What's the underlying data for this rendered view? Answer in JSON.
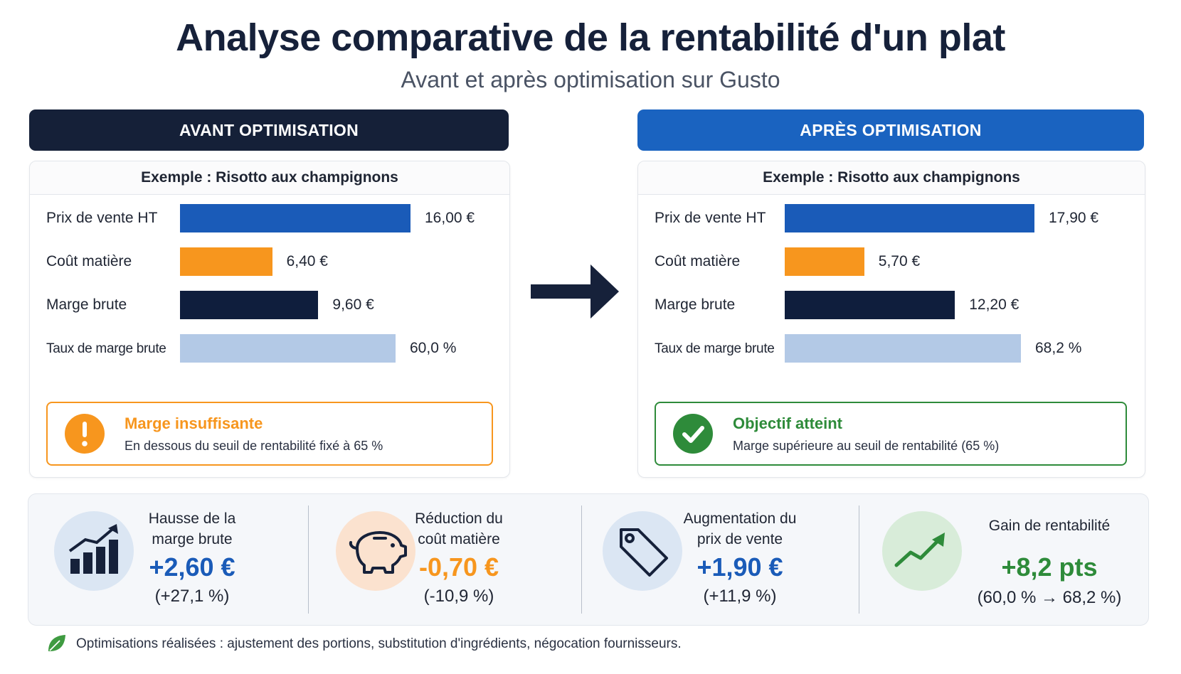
{
  "header": {
    "title": "Analyse comparative de la rentabilité d'un plat",
    "subtitle": "Avant et après optimisation sur Gusto"
  },
  "panels": {
    "before": {
      "heading": "AVANT OPTIMISATION",
      "example": "Exemple : Risotto aux champignons",
      "status": {
        "title": "Marge insuffisante",
        "text": "En dessous du seuil de rentabilité fixé à 65 %",
        "icon": "exclamation-icon"
      }
    },
    "after": {
      "heading": "APRÈS OPTIMISATION",
      "example": "Exemple : Risotto aux champignons",
      "status": {
        "title": "Objectif atteint",
        "text": "Marge supérieure au seuil de rentabilité (65 %)",
        "icon": "check-icon"
      }
    }
  },
  "chart_data": [
    {
      "type": "bar",
      "orientation": "horizontal",
      "categories": [
        "Prix de vente HT",
        "Coût matière",
        "Marge brute",
        "Taux de marge brute"
      ],
      "values": [
        16.0,
        6.4,
        9.6,
        60.0
      ],
      "value_labels": [
        "16,00 €",
        "6,40 €",
        "9,60 €",
        "60,0 %"
      ],
      "units": [
        "€",
        "€",
        "€",
        "%"
      ],
      "colors": [
        "#1a5bb8",
        "#f7961e",
        "#0f1e3d",
        "#b3c9e6"
      ]
    },
    {
      "type": "bar",
      "orientation": "horizontal",
      "categories": [
        "Prix de vente HT",
        "Coût matière",
        "Marge brute",
        "Taux de marge brute"
      ],
      "values": [
        17.9,
        5.7,
        12.2,
        68.2
      ],
      "value_labels": [
        "17,90 €",
        "5,70 €",
        "12,20 €",
        "68,2 %"
      ],
      "units": [
        "€",
        "€",
        "€",
        "%"
      ],
      "colors": [
        "#1a5bb8",
        "#f7961e",
        "#0f1e3d",
        "#b3c9e6"
      ]
    }
  ],
  "kpis": [
    {
      "label_line1": "Hausse de la",
      "label_line2": "marge brute",
      "value": "+2,60 €",
      "sub": "(+27,1 %)",
      "icon": "bar-chart-up-icon",
      "color": "#1a5bb8"
    },
    {
      "label_line1": "Réduction du",
      "label_line2": "coût matière",
      "value": "-0,70 €",
      "sub": "(-10,9 %)",
      "icon": "piggy-bank-icon",
      "color": "#f7961e"
    },
    {
      "label_line1": "Augmentation du",
      "label_line2": "prix de vente",
      "value": "+1,90 €",
      "sub": "(+11,9 %)",
      "icon": "price-tag-icon",
      "color": "#1a5bb8"
    },
    {
      "label_line1": "Gain de rentabilité",
      "label_line2": "",
      "value": "+8,2 pts",
      "sub": "(60,0 % → 68,2 %)",
      "icon": "trend-up-icon",
      "color": "#2e8b3a"
    }
  ],
  "footer": {
    "text": "Optimisations réalisées : ajustement des portions, substitution d'ingrédients, négocation fournisseurs.",
    "icon": "leaf-icon"
  },
  "colors": {
    "navy": "#16213a",
    "blue": "#1a5bb8",
    "orange": "#f7961e",
    "green": "#2e8b3a"
  }
}
